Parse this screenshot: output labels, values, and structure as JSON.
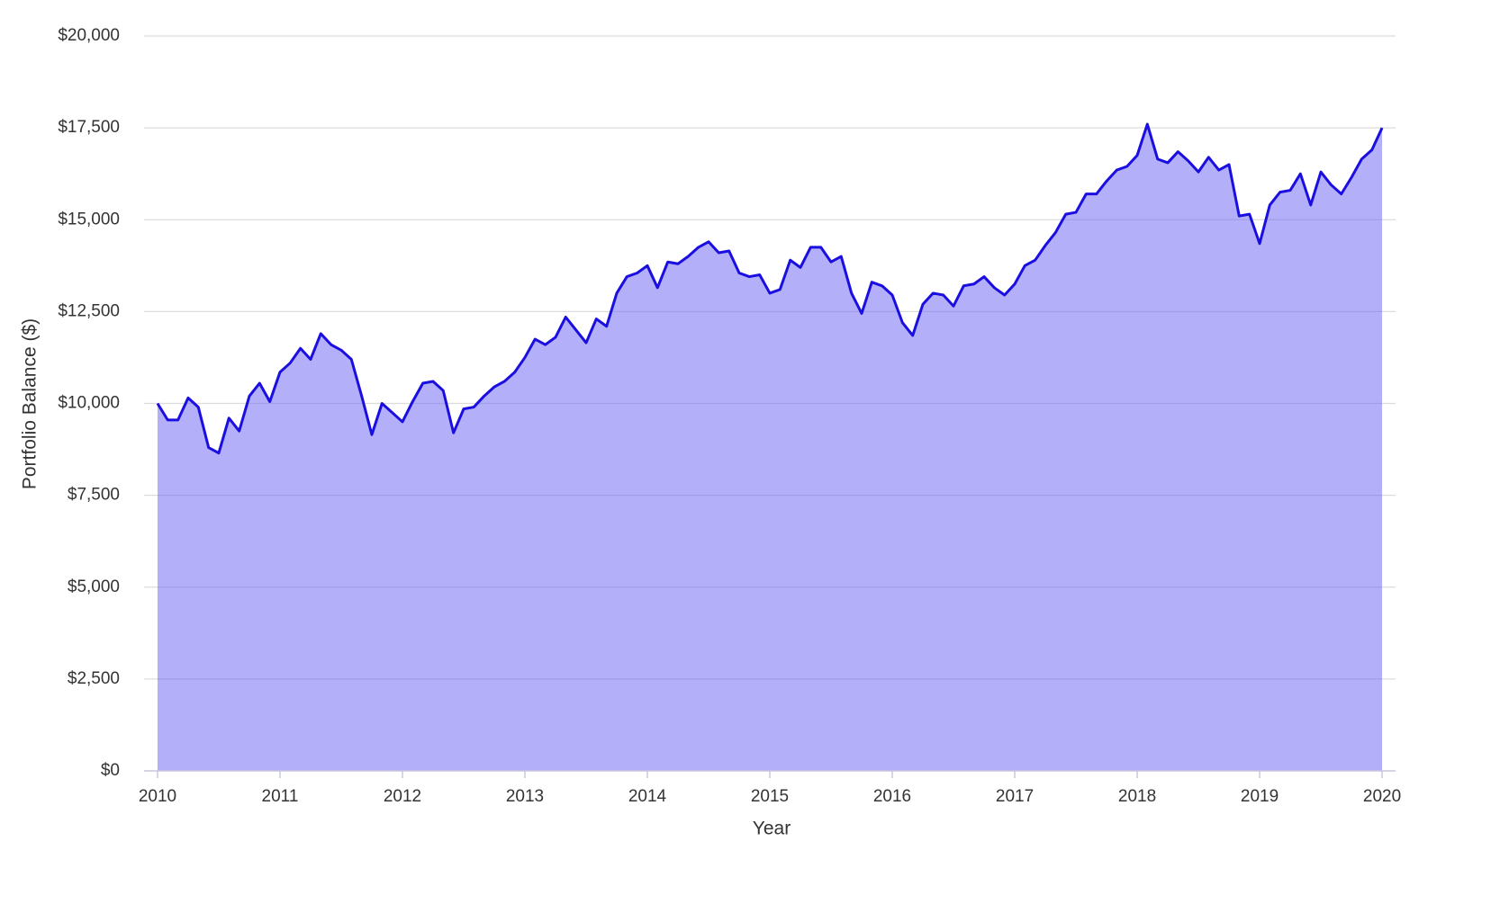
{
  "chart_data": {
    "type": "area",
    "xlabel": "Year",
    "ylabel": "Portfolio Balance ($)",
    "x": [
      2010,
      2010.083,
      2010.167,
      2010.25,
      2010.333,
      2010.417,
      2010.5,
      2010.583,
      2010.667,
      2010.75,
      2010.833,
      2010.917,
      2011,
      2011.083,
      2011.167,
      2011.25,
      2011.333,
      2011.417,
      2011.5,
      2011.583,
      2011.667,
      2011.75,
      2011.833,
      2011.917,
      2012,
      2012.083,
      2012.167,
      2012.25,
      2012.333,
      2012.417,
      2012.5,
      2012.583,
      2012.667,
      2012.75,
      2012.833,
      2012.917,
      2013,
      2013.083,
      2013.167,
      2013.25,
      2013.333,
      2013.417,
      2013.5,
      2013.583,
      2013.667,
      2013.75,
      2013.833,
      2013.917,
      2014,
      2014.083,
      2014.167,
      2014.25,
      2014.333,
      2014.417,
      2014.5,
      2014.583,
      2014.667,
      2014.75,
      2014.833,
      2014.917,
      2015,
      2015.083,
      2015.167,
      2015.25,
      2015.333,
      2015.417,
      2015.5,
      2015.583,
      2015.667,
      2015.75,
      2015.833,
      2015.917,
      2016,
      2016.083,
      2016.167,
      2016.25,
      2016.333,
      2016.417,
      2016.5,
      2016.583,
      2016.667,
      2016.75,
      2016.833,
      2016.917,
      2017,
      2017.083,
      2017.167,
      2017.25,
      2017.333,
      2017.417,
      2017.5,
      2017.583,
      2017.667,
      2017.75,
      2017.833,
      2017.917,
      2018,
      2018.083,
      2018.167,
      2018.25,
      2018.333,
      2018.417,
      2018.5,
      2018.583,
      2018.667,
      2018.75,
      2018.833,
      2018.917,
      2019,
      2019.083,
      2019.167,
      2019.25,
      2019.333,
      2019.417,
      2019.5,
      2019.583,
      2019.667,
      2019.75,
      2019.833,
      2019.917,
      2020
    ],
    "series": [
      {
        "color": "#1a0fe0",
        "fill": "#6e66f2",
        "values": [
          10000,
          9550,
          9550,
          10150,
          9900,
          8800,
          8650,
          9600,
          9250,
          10200,
          10550,
          10050,
          10850,
          11100,
          11500,
          11200,
          11900,
          11600,
          11450,
          11200,
          10200,
          9150,
          10000,
          9750,
          9500,
          10050,
          10550,
          10600,
          10350,
          9200,
          9850,
          9900,
          10200,
          10450,
          10600,
          10850,
          11250,
          11750,
          11600,
          11800,
          12350,
          12000,
          11650,
          12300,
          12100,
          13000,
          13450,
          13550,
          13750,
          13150,
          13850,
          13800,
          14000,
          14250,
          14400,
          14100,
          14150,
          13550,
          13450,
          13500,
          13000,
          13100,
          13900,
          13700,
          14250,
          14250,
          13850,
          14000,
          13000,
          12450,
          13300,
          13200,
          12950,
          12200,
          11850,
          12700,
          13000,
          12950,
          12650,
          13200,
          13250,
          13450,
          13150,
          12950,
          13250,
          13750,
          13900,
          14300,
          14650,
          15150,
          15200,
          15700,
          15700,
          16050,
          16350,
          16450,
          16750,
          17600,
          16650,
          16550,
          16850,
          16600,
          16300,
          16700,
          16350,
          16500,
          15100,
          15150,
          14350,
          15400,
          15750,
          15800,
          16250,
          15400,
          16300,
          15950,
          15700,
          16150,
          16650,
          16900,
          17500
        ]
      }
    ],
    "xlim": [
      2009.89,
      2020.11
    ],
    "xticks": [
      2010,
      2011,
      2012,
      2013,
      2014,
      2015,
      2016,
      2017,
      2018,
      2019,
      2020
    ],
    "ylim": [
      0,
      20000
    ],
    "yticks": [
      {
        "value": 0,
        "label": "$0"
      },
      {
        "value": 2500,
        "label": "$2,500"
      },
      {
        "value": 5000,
        "label": "$5,000"
      },
      {
        "value": 7500,
        "label": "$7,500"
      },
      {
        "value": 10000,
        "label": "$10,000"
      },
      {
        "value": 12500,
        "label": "$12,500"
      },
      {
        "value": 15000,
        "label": "$15,000"
      },
      {
        "value": 17500,
        "label": "$17,500"
      },
      {
        "value": 20000,
        "label": "$20,000"
      }
    ],
    "grid": true
  }
}
